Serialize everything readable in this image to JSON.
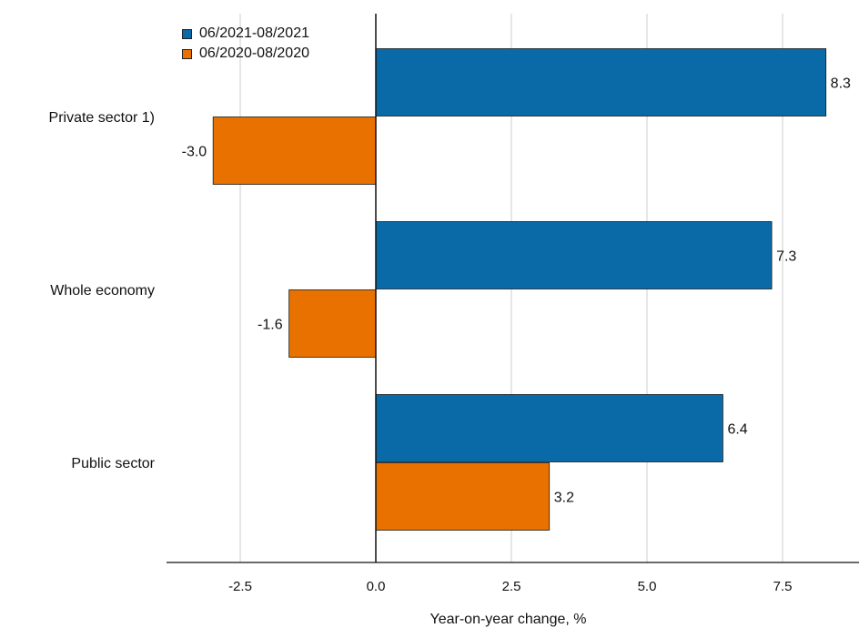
{
  "chart_data": {
    "type": "bar",
    "orientation": "horizontal",
    "categories": [
      "Private sector 1)",
      "Whole economy",
      "Public sector"
    ],
    "series": [
      {
        "name": "06/2021-08/2021",
        "color": "#0a6aa8",
        "values": [
          8.3,
          7.3,
          6.4
        ],
        "labels": [
          "8.3",
          "7.3",
          "6.4"
        ]
      },
      {
        "name": "06/2020-08/2020",
        "color": "#e87100",
        "values": [
          -3.0,
          -1.6,
          3.2
        ],
        "labels": [
          "-3.0",
          "-1.6",
          "3.2"
        ]
      }
    ],
    "xlabel": "Year-on-year change, %",
    "xlim": [
      -3.8,
      8.8
    ],
    "xticks": [
      -2.5,
      0.0,
      2.5,
      5.0,
      7.5
    ],
    "xtick_labels": [
      "-2.5",
      "0.0",
      "2.5",
      "5.0",
      "7.5"
    ],
    "grid": "vertical",
    "legend_position": "top-left"
  }
}
